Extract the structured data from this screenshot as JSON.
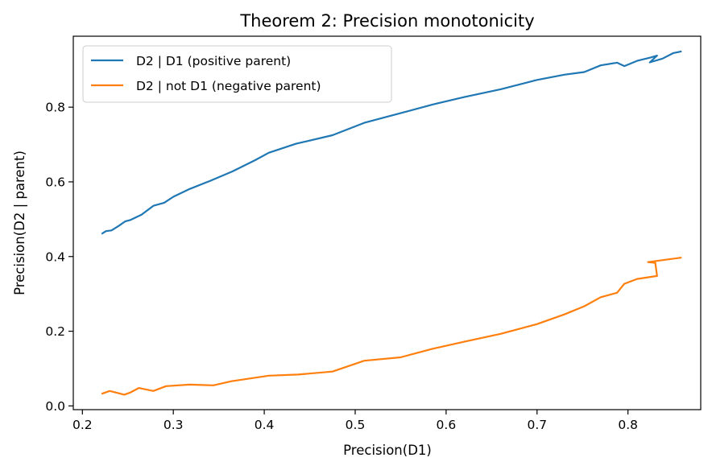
{
  "chart_data": {
    "type": "line",
    "title": "Theorem 2: Precision monotonicity",
    "xlabel": "Precision(D1)",
    "ylabel": "Precision(D2 | parent)",
    "xlim": [
      0.19,
      0.88
    ],
    "ylim": [
      -0.01,
      0.99
    ],
    "xticks": [
      0.2,
      0.3,
      0.4,
      0.5,
      0.6,
      0.7,
      0.8
    ],
    "xtick_labels": [
      "0.2",
      "0.3",
      "0.4",
      "0.5",
      "0.6",
      "0.7",
      "0.8"
    ],
    "yticks": [
      0.0,
      0.2,
      0.4,
      0.6,
      0.8
    ],
    "ytick_labels": [
      "0.0",
      "0.2",
      "0.4",
      "0.6",
      "0.8"
    ],
    "grid": false,
    "legend_position": "top-left",
    "series": [
      {
        "name": "D2 | D1 (positive parent)",
        "color": "#1f77b4",
        "points": [
          [
            0.222,
            0.462
          ],
          [
            0.226,
            0.468
          ],
          [
            0.232,
            0.47
          ],
          [
            0.24,
            0.482
          ],
          [
            0.247,
            0.494
          ],
          [
            0.253,
            0.498
          ],
          [
            0.265,
            0.512
          ],
          [
            0.278,
            0.536
          ],
          [
            0.29,
            0.544
          ],
          [
            0.3,
            0.56
          ],
          [
            0.318,
            0.581
          ],
          [
            0.34,
            0.602
          ],
          [
            0.365,
            0.628
          ],
          [
            0.39,
            0.658
          ],
          [
            0.405,
            0.678
          ],
          [
            0.435,
            0.702
          ],
          [
            0.475,
            0.725
          ],
          [
            0.51,
            0.758
          ],
          [
            0.55,
            0.784
          ],
          [
            0.585,
            0.807
          ],
          [
            0.62,
            0.827
          ],
          [
            0.66,
            0.848
          ],
          [
            0.7,
            0.873
          ],
          [
            0.73,
            0.887
          ],
          [
            0.752,
            0.894
          ],
          [
            0.77,
            0.912
          ],
          [
            0.788,
            0.919
          ],
          [
            0.796,
            0.91
          ],
          [
            0.81,
            0.924
          ],
          [
            0.825,
            0.933
          ],
          [
            0.832,
            0.938
          ],
          [
            0.824,
            0.92
          ],
          [
            0.838,
            0.93
          ],
          [
            0.85,
            0.945
          ],
          [
            0.858,
            0.949
          ]
        ]
      },
      {
        "name": "D2 | not D1 (negative parent)",
        "color": "#ff7f0e",
        "points": [
          [
            0.222,
            0.033
          ],
          [
            0.23,
            0.04
          ],
          [
            0.238,
            0.035
          ],
          [
            0.246,
            0.03
          ],
          [
            0.252,
            0.035
          ],
          [
            0.262,
            0.048
          ],
          [
            0.278,
            0.04
          ],
          [
            0.292,
            0.053
          ],
          [
            0.318,
            0.057
          ],
          [
            0.344,
            0.055
          ],
          [
            0.364,
            0.066
          ],
          [
            0.405,
            0.081
          ],
          [
            0.437,
            0.084
          ],
          [
            0.475,
            0.092
          ],
          [
            0.51,
            0.121
          ],
          [
            0.55,
            0.13
          ],
          [
            0.585,
            0.153
          ],
          [
            0.62,
            0.172
          ],
          [
            0.66,
            0.193
          ],
          [
            0.7,
            0.219
          ],
          [
            0.73,
            0.245
          ],
          [
            0.752,
            0.267
          ],
          [
            0.77,
            0.291
          ],
          [
            0.788,
            0.303
          ],
          [
            0.796,
            0.327
          ],
          [
            0.81,
            0.34
          ],
          [
            0.832,
            0.348
          ],
          [
            0.83,
            0.383
          ],
          [
            0.822,
            0.385
          ],
          [
            0.858,
            0.397
          ]
        ]
      }
    ]
  }
}
